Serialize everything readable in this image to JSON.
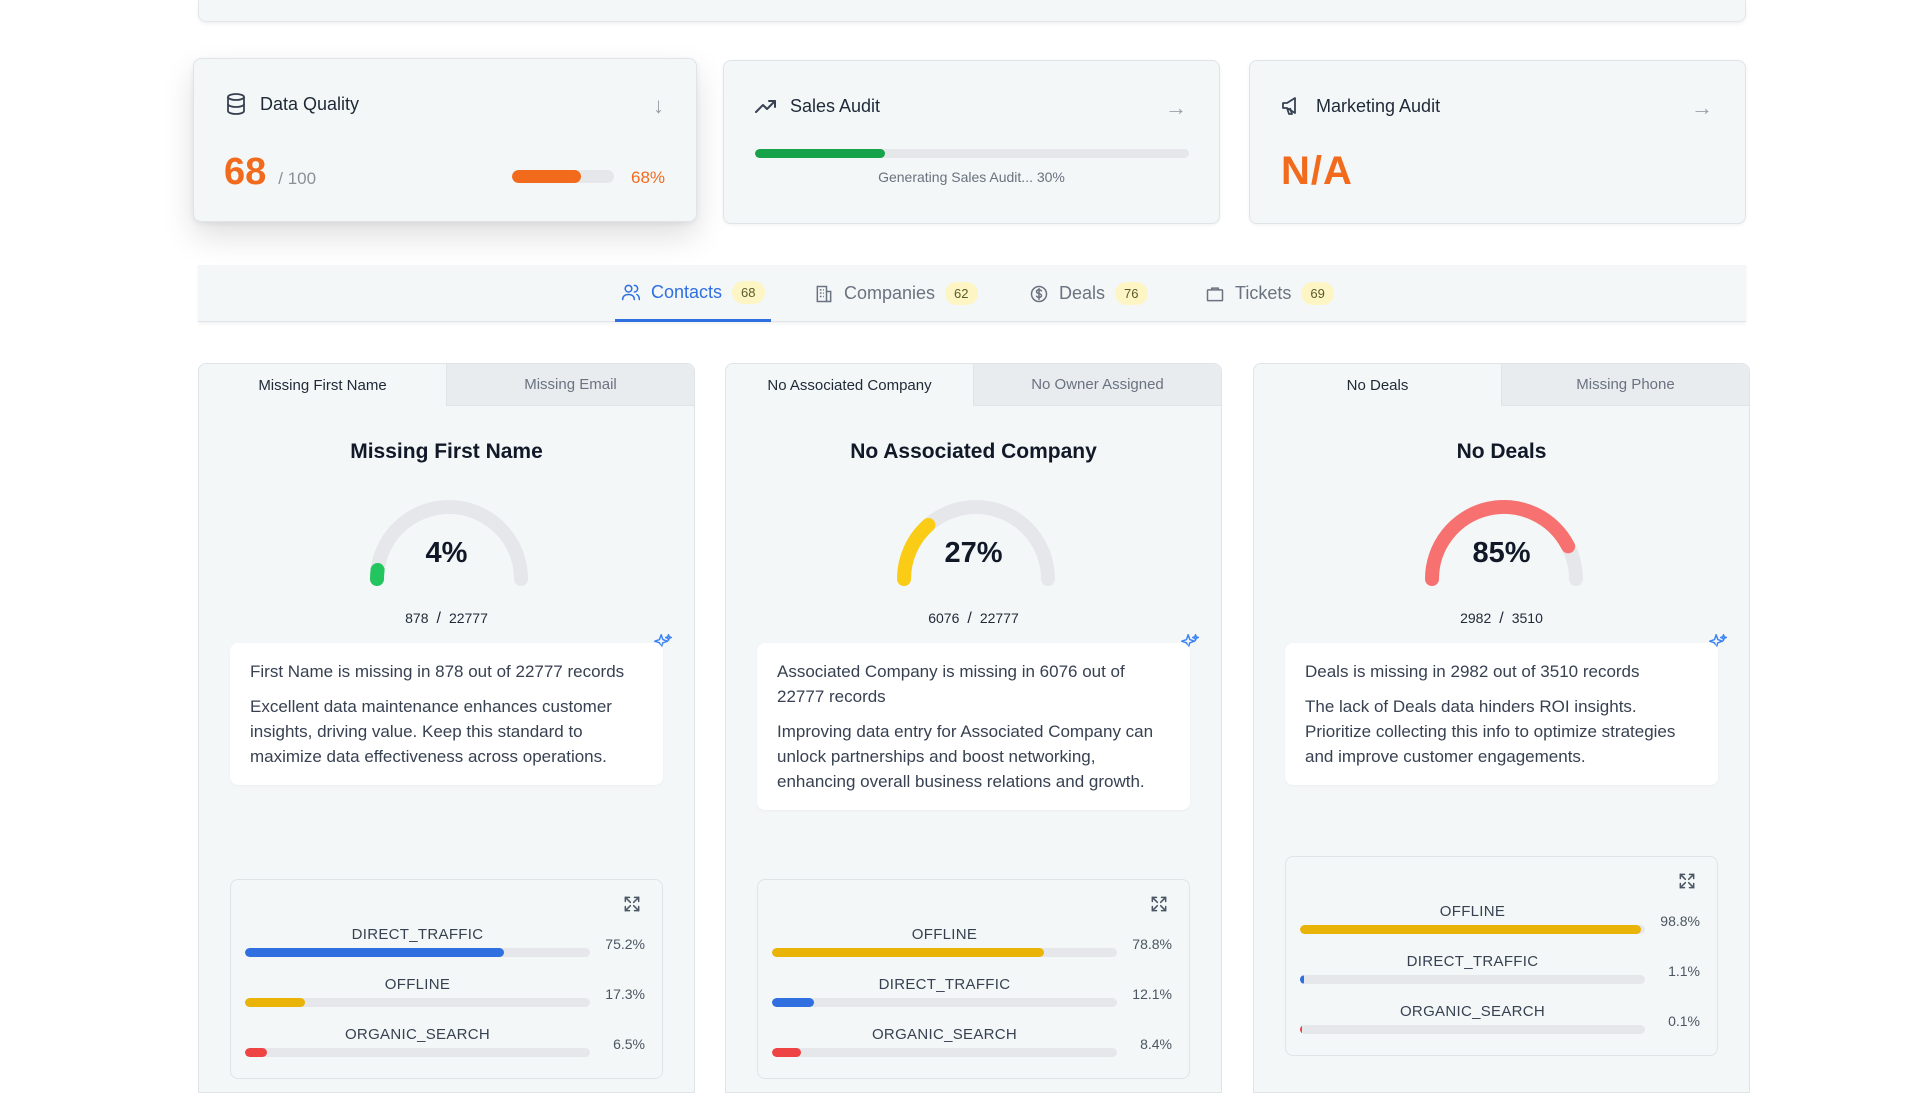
{
  "audit_cards": {
    "data_quality": {
      "title": "Data Quality",
      "score": "68",
      "denominator": "/ 100",
      "percent_label": "68%",
      "progress": 0.68,
      "arrow": "↓"
    },
    "sales_audit": {
      "title": "Sales Audit",
      "status": "Generating Sales Audit... 30%",
      "progress": 0.3,
      "arrow": "→"
    },
    "marketing_audit": {
      "title": "Marketing Audit",
      "value": "N/A",
      "arrow": "→"
    }
  },
  "tabs": [
    {
      "label": "Contacts",
      "count": "68",
      "icon": "users-icon",
      "active": true
    },
    {
      "label": "Companies",
      "count": "62",
      "icon": "building-icon",
      "active": false
    },
    {
      "label": "Deals",
      "count": "76",
      "icon": "dollar-icon",
      "active": false
    },
    {
      "label": "Tickets",
      "count": "69",
      "icon": "ticket-icon",
      "active": false
    }
  ],
  "panels": [
    {
      "tabs": [
        "Missing First Name",
        "Missing Email"
      ],
      "title": "Missing First Name",
      "gauge_value": "4%",
      "gauge_fraction": 0.04,
      "gauge_color": "#22c55e",
      "count": "878",
      "total": "22777",
      "insight_1": "First Name is missing in 878 out of 22777 records",
      "insight_2": "Excellent data maintenance enhances customer insights, driving value. Keep this standard to maximize data effectiveness across operations.",
      "sources": [
        {
          "name": "DIRECT_TRAFFIC",
          "pct": "75.2%",
          "value": 0.752,
          "color": "#2f6fe0"
        },
        {
          "name": "OFFLINE",
          "pct": "17.3%",
          "value": 0.173,
          "color": "#eab308"
        },
        {
          "name": "ORGANIC_SEARCH",
          "pct": "6.5%",
          "value": 0.065,
          "color": "#ef4444"
        }
      ]
    },
    {
      "tabs": [
        "No Associated Company",
        "No Owner Assigned"
      ],
      "title": "No Associated Company",
      "gauge_value": "27%",
      "gauge_fraction": 0.27,
      "gauge_color": "#facc15",
      "count": "6076",
      "total": "22777",
      "insight_1": "Associated Company is missing in 6076 out of 22777 records",
      "insight_2": "Improving data entry for Associated Company can unlock partnerships and boost networking, enhancing overall business relations and growth.",
      "sources": [
        {
          "name": "OFFLINE",
          "pct": "78.8%",
          "value": 0.788,
          "color": "#eab308"
        },
        {
          "name": "DIRECT_TRAFFIC",
          "pct": "12.1%",
          "value": 0.121,
          "color": "#2f6fe0"
        },
        {
          "name": "ORGANIC_SEARCH",
          "pct": "8.4%",
          "value": 0.084,
          "color": "#ef4444"
        }
      ]
    },
    {
      "tabs": [
        "No Deals",
        "Missing Phone"
      ],
      "title": "No Deals",
      "gauge_value": "85%",
      "gauge_fraction": 0.85,
      "gauge_color": "#f87171",
      "count": "2982",
      "total": "3510",
      "insight_1": "Deals is missing in 2982 out of 3510 records",
      "insight_2": "The lack of Deals data hinders ROI insights. Prioritize collecting this info to optimize strategies and improve customer engagements.",
      "sources": [
        {
          "name": "OFFLINE",
          "pct": "98.8%",
          "value": 0.988,
          "color": "#eab308"
        },
        {
          "name": "DIRECT_TRAFFIC",
          "pct": "1.1%",
          "value": 0.011,
          "color": "#2f6fe0"
        },
        {
          "name": "ORGANIC_SEARCH",
          "pct": "0.1%",
          "value": 0.001,
          "color": "#ef4444"
        }
      ]
    }
  ]
}
